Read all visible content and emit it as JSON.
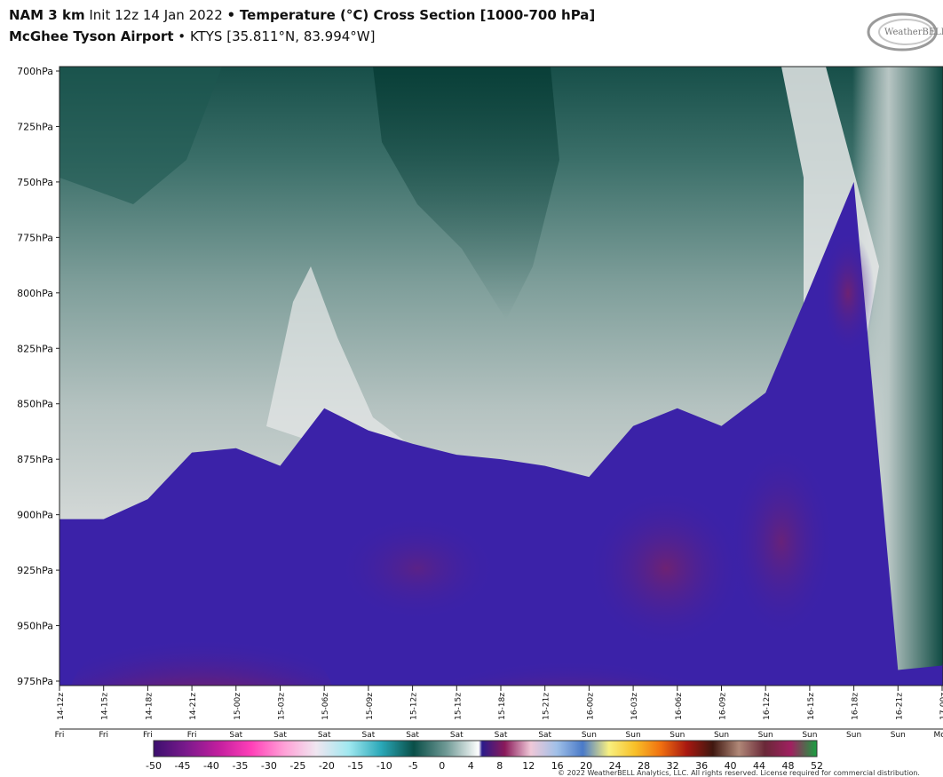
{
  "header": {
    "model": "NAM 3 km",
    "init": "Init 12z 14 Jan 2022",
    "sep": "•",
    "product": "Temperature (°C) Cross Section [1000-700 hPa]",
    "station": "McGhee Tyson Airport",
    "station_id": "KTYS [35.811°N, 83.994°W]",
    "logo_text": "WeatherBELL"
  },
  "footer": {
    "copyright": "© 2022 WeatherBELL Analytics, LLC. All rights reserved. License required for commercial distribution."
  },
  "colors": {
    "cold_deep": "#0d4a42",
    "cold_mid": "#6f9995",
    "cold_light": "#d4d8d7",
    "warm_band": "#3d20a8",
    "warm_core": "#c1281e",
    "warm_mid": "#7a2266"
  },
  "chart_data": {
    "type": "heatmap",
    "title": "Temperature (°C) Cross Section [1000-700 hPa]",
    "ylabel": "hPa",
    "y_levels": [
      "700hPa",
      "725hPa",
      "750hPa",
      "775hPa",
      "800hPa",
      "825hPa",
      "850hPa",
      "875hPa",
      "900hPa",
      "925hPa",
      "950hPa",
      "975hPa"
    ],
    "y_values": [
      700,
      725,
      750,
      775,
      800,
      825,
      850,
      875,
      900,
      925,
      950,
      975
    ],
    "ylim": [
      975,
      700
    ],
    "x_ticks": [
      "14-12z",
      "14-15z",
      "14-18z",
      "14-21z",
      "15-00z",
      "15-03z",
      "15-06z",
      "15-09z",
      "15-12z",
      "15-15z",
      "15-18z",
      "15-21z",
      "16-00z",
      "16-03z",
      "16-06z",
      "16-09z",
      "16-12z",
      "16-15z",
      "16-18z",
      "16-21z",
      "17-00z"
    ],
    "x_days": [
      "Fri",
      "Fri",
      "Fri",
      "Fri",
      "Sat",
      "Sat",
      "Sat",
      "Sat",
      "Sat",
      "Sat",
      "Sat",
      "Sat",
      "Sun",
      "Sun",
      "Sun",
      "Sun",
      "Sun",
      "Sun",
      "Sun",
      "Sun",
      "Mon"
    ],
    "colorbar": {
      "labels": [
        "-50",
        "-45",
        "-40",
        "-35",
        "-30",
        "-25",
        "-20",
        "-15",
        "-10",
        "-5",
        "0",
        "4",
        "8",
        "12",
        "16",
        "20",
        "24",
        "28",
        "32",
        "36",
        "40",
        "44",
        "48",
        "52"
      ],
      "min": -50,
      "max": 52,
      "stops": [
        {
          "value": -50,
          "color": "#3b0f6e"
        },
        {
          "value": -45,
          "color": "#7a1a8c"
        },
        {
          "value": -40,
          "color": "#c21e9e"
        },
        {
          "value": -35,
          "color": "#ff3fb8"
        },
        {
          "value": -30,
          "color": "#ff9fd6"
        },
        {
          "value": -25,
          "color": "#f0e6f0"
        },
        {
          "value": -20,
          "color": "#a0e8f0"
        },
        {
          "value": -15,
          "color": "#2aa8b8"
        },
        {
          "value": -10,
          "color": "#0a4f48"
        },
        {
          "value": -5,
          "color": "#6f9995"
        },
        {
          "value": 0,
          "color": "#ffffff"
        },
        {
          "value": 0.5,
          "color": "#2a1a8a"
        },
        {
          "value": 4,
          "color": "#8a1a5a"
        },
        {
          "value": 8,
          "color": "#f0c8d8"
        },
        {
          "value": 12,
          "color": "#a0c0e8"
        },
        {
          "value": 16,
          "color": "#4a7ac8"
        },
        {
          "value": 20,
          "color": "#f8f080"
        },
        {
          "value": 24,
          "color": "#f8c028"
        },
        {
          "value": 28,
          "color": "#f07010"
        },
        {
          "value": 32,
          "color": "#a81810"
        },
        {
          "value": 36,
          "color": "#401810"
        },
        {
          "value": 40,
          "color": "#b08878"
        },
        {
          "value": 44,
          "color": "#6a2838"
        },
        {
          "value": 48,
          "color": "#a02060"
        },
        {
          "value": 52,
          "color": "#18a040"
        }
      ]
    },
    "freezing_line_hPa": [
      902,
      902,
      893,
      872,
      870,
      878,
      852,
      862,
      868,
      873,
      875,
      878,
      883,
      860,
      852,
      860,
      845,
      798,
      750,
      970,
      968
    ],
    "notes_data": {
      "warm_nose_core_max_C": 8,
      "cold_max_aloft_C": -10
    }
  }
}
